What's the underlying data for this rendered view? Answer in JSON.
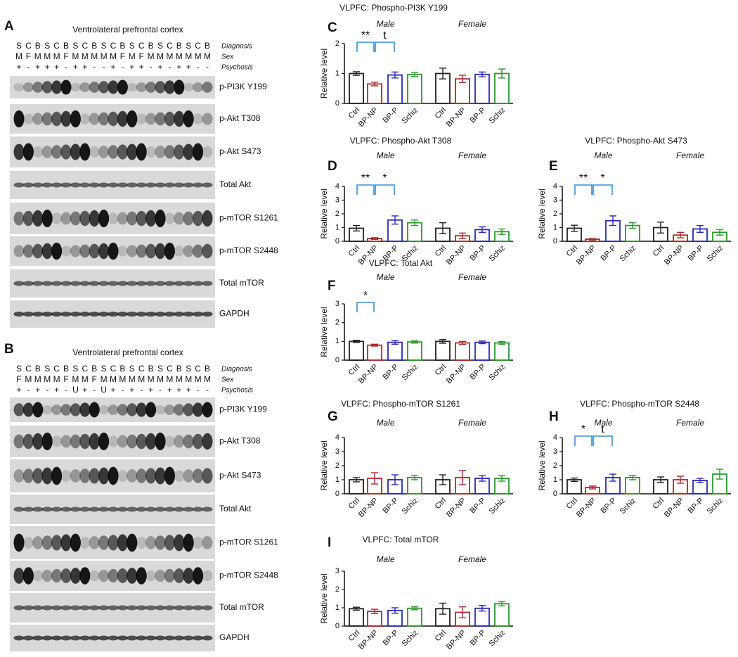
{
  "blots": [
    {
      "letter": "A",
      "title": "Ventrolateral prefrontal cortex",
      "row_labels": [
        "Diagnosis",
        "Sex",
        "Psychosis"
      ],
      "lanes": [
        [
          "S",
          "C",
          "B",
          "S",
          "C",
          "B",
          "S",
          "C",
          "B",
          "S",
          "C",
          "B",
          "S",
          "C",
          "B",
          "S",
          "C",
          "B",
          "S",
          "C",
          "B"
        ],
        [
          "M",
          "F",
          "M",
          "M",
          "M",
          "F",
          "M",
          "M",
          "M",
          "M",
          "M",
          "F",
          "M",
          "F",
          "M",
          "M",
          "M",
          "M",
          "M",
          "M",
          "M"
        ],
        [
          "+",
          "-",
          "+",
          "+",
          "+",
          "-",
          "+",
          "+",
          "-",
          "-",
          "+",
          "-",
          "+",
          "+",
          "-",
          "+",
          "-",
          "+",
          "+",
          "-",
          "-"
        ]
      ],
      "bands": [
        "p-PI3K Y199",
        "p-Akt T308",
        "p-Akt S473",
        "Total Akt",
        "p-mTOR S1261",
        "p-mTOR S2448",
        "Total mTOR",
        "GAPDH"
      ]
    },
    {
      "letter": "B",
      "title": "Ventrolateral prefrontal cortex",
      "row_labels": [
        "Diagnosis",
        "Sex",
        "Psychosis"
      ],
      "lanes": [
        [
          "S",
          "C",
          "B",
          "S",
          "C",
          "B",
          "S",
          "C",
          "B",
          "S",
          "C",
          "B",
          "S",
          "C",
          "B",
          "S",
          "C",
          "B",
          "S",
          "C",
          "B"
        ],
        [
          "F",
          "M",
          "M",
          "M",
          "M",
          "F",
          "M",
          "M",
          "F",
          "M",
          "M",
          "M",
          "M",
          "M",
          "M",
          "M",
          "M",
          "M",
          "M",
          "M",
          "M"
        ],
        [
          "+",
          "-",
          "+",
          "-",
          "+",
          "-",
          "U",
          "+",
          "-",
          "U",
          "+",
          "-",
          "+",
          "-",
          "+",
          "-",
          "+",
          "+",
          "+",
          "-",
          "-"
        ]
      ],
      "bands": [
        "p-PI3K Y199",
        "p-Akt T308",
        "p-Akt S473",
        "Total Akt",
        "p-mTOR S1261",
        "p-mTOR S2448",
        "Total mTOR",
        "GAPDH"
      ]
    }
  ],
  "chart_data": [
    {
      "type": "bar",
      "letter": "C",
      "title": "VLPFC: Phospho-PI3K Y199",
      "ylabel": "Relative level",
      "groups": [
        "Male",
        "Female"
      ],
      "categories": [
        "Ctrl",
        "BP-NP",
        "BP-P",
        "Schiz",
        "Ctrl",
        "BP-NP",
        "BP-P",
        "Schiz"
      ],
      "colors": [
        "#222222",
        "#b02a2a",
        "#2a2ab8",
        "#2a9a2a",
        "#222222",
        "#b02a2a",
        "#2a2ab8",
        "#2a9a2a"
      ],
      "values": [
        1.0,
        0.65,
        0.95,
        0.97,
        1.0,
        0.82,
        0.97,
        1.0
      ],
      "errors": [
        0.06,
        0.06,
        0.1,
        0.07,
        0.18,
        0.12,
        0.08,
        0.15
      ],
      "ylim": [
        0,
        2
      ],
      "yticks": [
        0,
        1,
        2
      ],
      "annotations": [
        "**",
        "t"
      ]
    },
    {
      "type": "bar",
      "letter": "D",
      "title": "VLPFC: Phospho-Akt T308",
      "ylabel": "Relative level",
      "groups": [
        "Male",
        "Female"
      ],
      "categories": [
        "Ctrl",
        "BP-NP",
        "BP-P",
        "Schiz",
        "Ctrl",
        "BP-NP",
        "BP-P",
        "Schiz"
      ],
      "colors": [
        "#222222",
        "#b02a2a",
        "#2a2ab8",
        "#2a9a2a",
        "#222222",
        "#b02a2a",
        "#2a2ab8",
        "#2a9a2a"
      ],
      "values": [
        0.95,
        0.2,
        1.55,
        1.35,
        0.95,
        0.4,
        0.85,
        0.7
      ],
      "errors": [
        0.2,
        0.06,
        0.3,
        0.2,
        0.4,
        0.2,
        0.2,
        0.2
      ],
      "ylim": [
        0,
        4
      ],
      "yticks": [
        0,
        1,
        2,
        3,
        4
      ],
      "annotations": [
        "**",
        "*"
      ]
    },
    {
      "type": "bar",
      "letter": "E",
      "title": "VLPFC: Phospho-Akt S473",
      "ylabel": "Relative level",
      "groups": [
        "Male",
        "Female"
      ],
      "categories": [
        "Ctrl",
        "BP-NP",
        "BP-P",
        "Schiz",
        "Ctrl",
        "BP-NP",
        "BP-P",
        "Schiz"
      ],
      "colors": [
        "#222222",
        "#b02a2a",
        "#2a2ab8",
        "#2a9a2a",
        "#222222",
        "#b02a2a",
        "#2a2ab8",
        "#2a9a2a"
      ],
      "values": [
        0.95,
        0.15,
        1.5,
        1.15,
        1.0,
        0.45,
        0.9,
        0.65
      ],
      "errors": [
        0.22,
        0.05,
        0.35,
        0.2,
        0.4,
        0.2,
        0.25,
        0.2
      ],
      "ylim": [
        0,
        4
      ],
      "yticks": [
        0,
        1,
        2,
        3,
        4
      ],
      "annotations": [
        "**",
        "*"
      ]
    },
    {
      "type": "bar",
      "letter": "F",
      "title": "VLPFC: Total Akt",
      "ylabel": "Relative level",
      "groups": [
        "Male",
        "Female"
      ],
      "categories": [
        "Ctrl",
        "BP-NP",
        "BP-P",
        "Schiz",
        "Ctrl",
        "BP-NP",
        "BP-P",
        "Schiz"
      ],
      "colors": [
        "#222222",
        "#b02a2a",
        "#2a2ab8",
        "#2a9a2a",
        "#222222",
        "#b02a2a",
        "#2a2ab8",
        "#2a9a2a"
      ],
      "values": [
        1.0,
        0.8,
        0.95,
        0.97,
        1.0,
        0.92,
        0.95,
        0.92
      ],
      "errors": [
        0.06,
        0.05,
        0.1,
        0.06,
        0.1,
        0.08,
        0.07,
        0.07
      ],
      "ylim": [
        0,
        3
      ],
      "yticks": [
        0,
        1,
        2,
        3
      ],
      "annotations": [
        "*"
      ]
    },
    {
      "type": "bar",
      "letter": "G",
      "title": "VLPFC: Phospho-mTOR S1261",
      "ylabel": "Relative level",
      "groups": [
        "Male",
        "Female"
      ],
      "categories": [
        "Ctrl",
        "BP-NP",
        "BP-P",
        "Schiz",
        "Ctrl",
        "BP-NP",
        "BP-P",
        "Schiz"
      ],
      "colors": [
        "#222222",
        "#b02a2a",
        "#2a2ab8",
        "#2a9a2a",
        "#222222",
        "#b02a2a",
        "#2a2ab8",
        "#2a9a2a"
      ],
      "values": [
        1.0,
        1.1,
        1.0,
        1.15,
        1.0,
        1.15,
        1.1,
        1.1
      ],
      "errors": [
        0.15,
        0.4,
        0.35,
        0.15,
        0.35,
        0.5,
        0.2,
        0.2
      ],
      "ylim": [
        0,
        4
      ],
      "yticks": [
        0,
        1,
        2,
        3,
        4
      ],
      "annotations": []
    },
    {
      "type": "bar",
      "letter": "H",
      "title": "VLPFC: Phospho-mTOR S2448",
      "ylabel": "Relative level",
      "groups": [
        "Male",
        "Female"
      ],
      "categories": [
        "Ctrl",
        "BP-NP",
        "BP-P",
        "Schiz",
        "Ctrl",
        "BP-NP",
        "BP-P",
        "Schiz"
      ],
      "colors": [
        "#222222",
        "#b02a2a",
        "#2a2ab8",
        "#2a9a2a",
        "#222222",
        "#b02a2a",
        "#2a2ab8",
        "#2a9a2a"
      ],
      "values": [
        1.0,
        0.45,
        1.15,
        1.15,
        1.0,
        1.0,
        0.95,
        1.4
      ],
      "errors": [
        0.12,
        0.1,
        0.25,
        0.15,
        0.2,
        0.25,
        0.15,
        0.35
      ],
      "ylim": [
        0,
        4
      ],
      "yticks": [
        0,
        1,
        2,
        3,
        4
      ],
      "annotations": [
        "*",
        "t"
      ]
    },
    {
      "type": "bar",
      "letter": "I",
      "title": "VLPFC: Total mTOR",
      "ylabel": "Relative level",
      "groups": [
        "Male",
        "Female"
      ],
      "categories": [
        "Ctrl",
        "BP-NP",
        "BP-P",
        "Schiz",
        "Ctrl",
        "BP-NP",
        "BP-P",
        "Schiz"
      ],
      "colors": [
        "#222222",
        "#b02a2a",
        "#2a2ab8",
        "#2a9a2a",
        "#222222",
        "#b02a2a",
        "#2a2ab8",
        "#2a9a2a"
      ],
      "values": [
        0.95,
        0.8,
        0.85,
        0.97,
        0.95,
        0.75,
        0.97,
        1.22
      ],
      "errors": [
        0.08,
        0.12,
        0.15,
        0.08,
        0.3,
        0.3,
        0.15,
        0.12
      ],
      "ylim": [
        0,
        3
      ],
      "yticks": [
        0,
        1,
        2,
        3
      ],
      "annotations": []
    }
  ]
}
